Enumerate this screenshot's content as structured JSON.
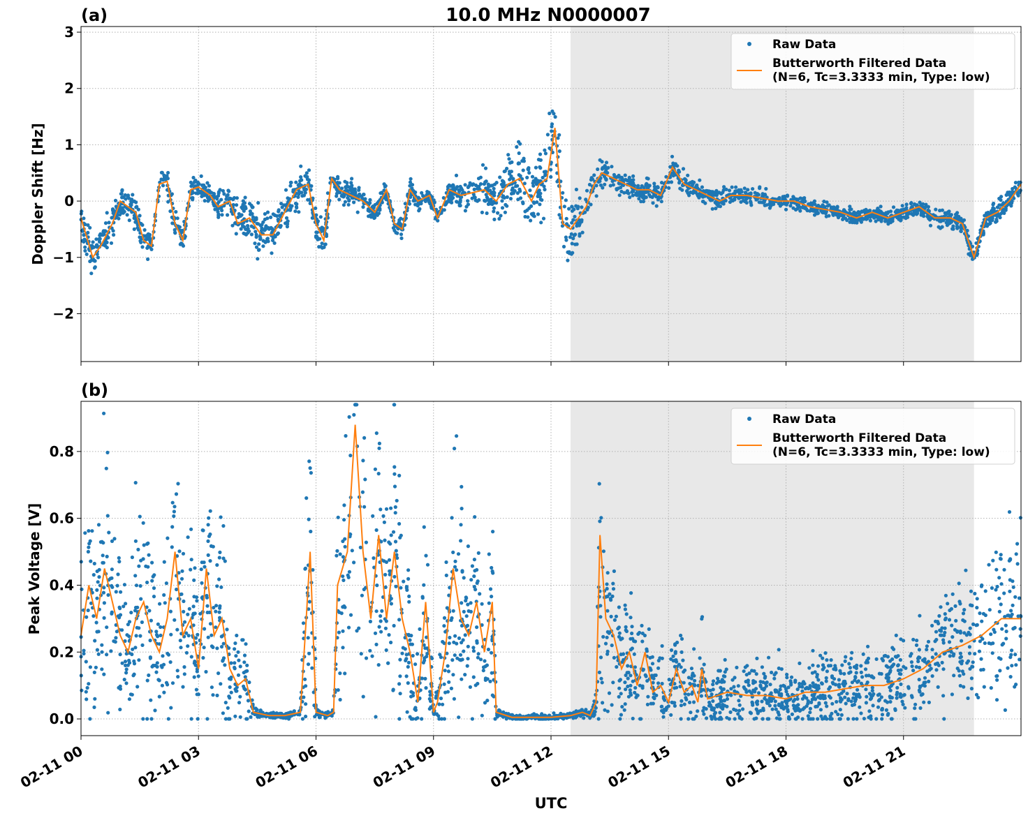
{
  "figure": {
    "title": "10.0 MHz N0000007",
    "xlabel": "UTC"
  },
  "colors": {
    "raw": "#1f77b4",
    "filtered": "#ff7f0e",
    "night_shade": "#e8e8e8",
    "grid": "#b0b0b0"
  },
  "chart_data": [
    {
      "type": "scatter",
      "panel_label": "(a)",
      "ylabel": "Doppler Shift [Hz]",
      "x_unit": "hours UTC since 02-11 00:00",
      "xlim": [
        0,
        24
      ],
      "ylim": [
        -2.85,
        3.1
      ],
      "yticks": [
        -2,
        -1,
        0,
        1,
        2,
        3
      ],
      "ytick_labels": [
        "−2",
        "−1",
        "0",
        "1",
        "2",
        "3"
      ],
      "xticks": [
        0,
        3,
        6,
        9,
        12,
        15,
        18,
        21
      ],
      "shaded_interval": [
        12.5,
        22.8
      ],
      "grid": true,
      "legend": {
        "placement": "top-right",
        "raw_label": "Raw Data",
        "filtered_label_line1": "Butterworth Filtered Data",
        "filtered_label_line2": "(N=6, Tc=3.3333 min, Type: low)"
      },
      "series": [
        {
          "name": "Butterworth Filtered Data",
          "kind": "line",
          "x": [
            0,
            0.3,
            0.5,
            0.8,
            1.0,
            1.2,
            1.4,
            1.6,
            1.8,
            2.0,
            2.2,
            2.4,
            2.6,
            2.8,
            3.0,
            3.3,
            3.5,
            3.8,
            4.0,
            4.3,
            4.6,
            4.9,
            5.2,
            5.5,
            5.8,
            6.0,
            6.2,
            6.4,
            6.6,
            6.9,
            7.2,
            7.5,
            7.8,
            8.0,
            8.2,
            8.4,
            8.6,
            8.9,
            9.1,
            9.4,
            9.7,
            10.0,
            10.3,
            10.6,
            10.9,
            11.2,
            11.5,
            11.7,
            11.9,
            12.1,
            12.3,
            12.5,
            12.7,
            12.9,
            13.1,
            13.3,
            13.6,
            13.9,
            14.2,
            14.5,
            14.8,
            15.1,
            15.4,
            15.7,
            16.0,
            16.3,
            16.6,
            17.0,
            17.4,
            17.8,
            18.2,
            18.6,
            19.0,
            19.4,
            19.8,
            20.2,
            20.6,
            21.0,
            21.4,
            21.8,
            22.2,
            22.5,
            22.8,
            23.1,
            23.4,
            23.7,
            24.0
          ],
          "y": [
            -0.3,
            -1.0,
            -0.8,
            -0.4,
            0.0,
            -0.1,
            -0.2,
            -0.7,
            -0.8,
            0.3,
            0.35,
            -0.4,
            -0.7,
            0.2,
            0.25,
            0.1,
            -0.1,
            0.0,
            -0.4,
            -0.3,
            -0.6,
            -0.6,
            -0.2,
            0.2,
            0.3,
            -0.4,
            -0.7,
            0.4,
            0.2,
            0.1,
            0.0,
            -0.2,
            0.2,
            -0.4,
            -0.5,
            0.2,
            0.0,
            0.1,
            -0.3,
            0.2,
            0.1,
            0.15,
            0.2,
            0.0,
            0.3,
            0.4,
            0.0,
            0.3,
            0.4,
            1.3,
            -0.4,
            -0.5,
            -0.3,
            -0.1,
            0.3,
            0.5,
            0.4,
            0.3,
            0.2,
            0.2,
            0.1,
            0.6,
            0.3,
            0.2,
            0.1,
            0.0,
            0.1,
            0.1,
            0.05,
            0.0,
            0.0,
            -0.1,
            -0.15,
            -0.2,
            -0.3,
            -0.2,
            -0.3,
            -0.2,
            -0.1,
            -0.3,
            -0.3,
            -0.4,
            -1.0,
            -0.3,
            -0.2,
            0.0,
            0.3
          ]
        },
        {
          "name": "Raw Data",
          "kind": "points",
          "generated_from_filtered": true,
          "point_count": 2600,
          "envelope_x": [
            0,
            1.5,
            3,
            4.5,
            6,
            7.5,
            9,
            10.5,
            11.0,
            11.5,
            12.0,
            12.2,
            12.4,
            12.6,
            13.0,
            14,
            15,
            16,
            18,
            20,
            22,
            24
          ],
          "envelope_spread": [
            0.4,
            0.35,
            0.25,
            0.5,
            0.35,
            0.2,
            0.2,
            0.5,
            0.65,
            0.7,
            0.8,
            1.0,
            0.8,
            0.6,
            0.35,
            0.25,
            0.25,
            0.2,
            0.15,
            0.15,
            0.2,
            0.25
          ]
        }
      ]
    },
    {
      "type": "scatter",
      "panel_label": "(b)",
      "ylabel": "Peak Voltage [V]",
      "x_unit": "hours UTC since 02-11 00:00",
      "xlim": [
        0,
        24
      ],
      "ylim": [
        -0.05,
        0.95
      ],
      "yticks": [
        0.0,
        0.2,
        0.4,
        0.6,
        0.8
      ],
      "ytick_labels": [
        "0.0",
        "0.2",
        "0.4",
        "0.6",
        "0.8"
      ],
      "xticks": [
        0,
        3,
        6,
        9,
        12,
        15,
        18,
        21
      ],
      "xtick_labels": [
        "02-11 00",
        "02-11 03",
        "02-11 06",
        "02-11 09",
        "02-11 12",
        "02-11 15",
        "02-11 18",
        "02-11 21"
      ],
      "shaded_interval": [
        12.5,
        22.8
      ],
      "grid": true,
      "legend": {
        "placement": "top-right",
        "raw_label": "Raw Data",
        "filtered_label_line1": "Butterworth Filtered Data",
        "filtered_label_line2": "(N=6, Tc=3.3333 min, Type: low)"
      },
      "series": [
        {
          "name": "Butterworth Filtered Data",
          "kind": "line",
          "x": [
            0,
            0.2,
            0.4,
            0.6,
            0.8,
            1.0,
            1.2,
            1.4,
            1.6,
            1.8,
            2.0,
            2.2,
            2.4,
            2.6,
            2.8,
            3.0,
            3.2,
            3.4,
            3.6,
            3.8,
            4.0,
            4.2,
            4.4,
            4.8,
            5.2,
            5.6,
            5.75,
            5.85,
            6.0,
            6.3,
            6.45,
            6.55,
            6.8,
            7.0,
            7.2,
            7.4,
            7.6,
            7.8,
            8.0,
            8.2,
            8.4,
            8.6,
            8.8,
            9.0,
            9.1,
            9.3,
            9.5,
            9.7,
            9.9,
            10.1,
            10.3,
            10.5,
            10.6,
            11.0,
            11.5,
            12.0,
            12.5,
            12.8,
            13.0,
            13.15,
            13.25,
            13.4,
            13.6,
            13.8,
            14.0,
            14.2,
            14.4,
            14.6,
            14.8,
            15.0,
            15.2,
            15.4,
            15.6,
            15.75,
            15.85,
            16.0,
            16.5,
            17.0,
            17.5,
            18.0,
            18.5,
            19.0,
            19.5,
            20.0,
            20.5,
            21.0,
            21.5,
            22.0,
            22.5,
            23.0,
            23.5,
            24.0
          ],
          "y": [
            0.25,
            0.4,
            0.3,
            0.45,
            0.35,
            0.25,
            0.2,
            0.3,
            0.35,
            0.25,
            0.2,
            0.3,
            0.5,
            0.25,
            0.3,
            0.15,
            0.45,
            0.25,
            0.3,
            0.15,
            0.1,
            0.12,
            0.02,
            0.01,
            0.01,
            0.02,
            0.3,
            0.5,
            0.02,
            0.01,
            0.02,
            0.4,
            0.5,
            0.88,
            0.5,
            0.3,
            0.55,
            0.3,
            0.5,
            0.3,
            0.2,
            0.05,
            0.35,
            0.02,
            0.05,
            0.2,
            0.45,
            0.3,
            0.25,
            0.35,
            0.2,
            0.35,
            0.02,
            0.005,
            0.005,
            0.005,
            0.01,
            0.02,
            0.01,
            0.05,
            0.55,
            0.3,
            0.25,
            0.15,
            0.2,
            0.1,
            0.2,
            0.08,
            0.1,
            0.05,
            0.15,
            0.08,
            0.1,
            0.05,
            0.15,
            0.06,
            0.08,
            0.07,
            0.07,
            0.06,
            0.08,
            0.08,
            0.09,
            0.1,
            0.1,
            0.12,
            0.15,
            0.2,
            0.22,
            0.25,
            0.3,
            0.3
          ]
        },
        {
          "name": "Raw Data",
          "kind": "points",
          "generated_from_filtered": true,
          "point_count": 2600
        }
      ]
    }
  ]
}
